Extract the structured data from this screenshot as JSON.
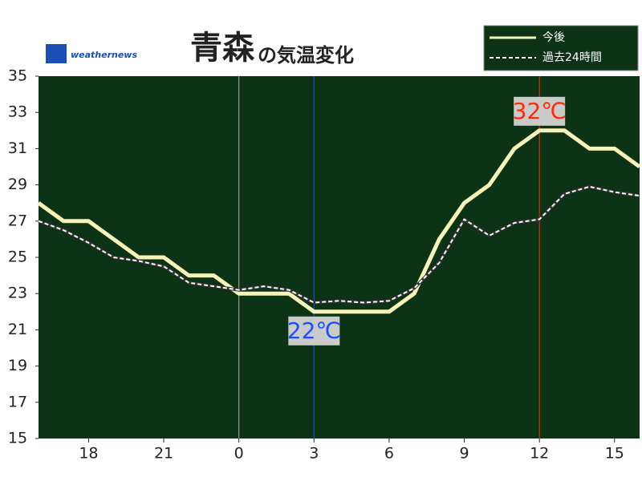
{
  "chart_data": {
    "type": "line",
    "title_place": "青森",
    "title_rest": "の気温変化",
    "logo": "weathernews",
    "x": [
      -8,
      -7,
      -6,
      -5,
      -4,
      -3,
      -2,
      -1,
      0,
      1,
      2,
      3,
      4,
      5,
      6,
      7,
      8,
      9,
      10,
      11,
      12,
      13,
      14,
      15,
      16
    ],
    "series": [
      {
        "name": "今後",
        "color": "#f7f3b8",
        "style": "solid",
        "values": [
          28,
          27,
          27,
          26,
          25,
          25,
          24,
          24,
          23,
          23,
          23,
          22,
          22,
          22,
          22,
          23,
          26,
          28,
          29,
          31,
          32,
          32,
          31,
          31,
          30
        ]
      },
      {
        "name": "過去24時間",
        "color": "#ffffff",
        "style": "dashed",
        "values": [
          27,
          26.5,
          25.8,
          25,
          24.8,
          24.5,
          23.6,
          23.4,
          23.2,
          23.4,
          23.2,
          22.5,
          22.6,
          22.5,
          22.6,
          23.3,
          24.7,
          27.1,
          26.2,
          26.9,
          27.1,
          28.5,
          28.9,
          28.6,
          28.4
        ]
      }
    ],
    "xlim": [
      -8,
      16
    ],
    "xticks": [
      {
        "value": -6,
        "label": "18"
      },
      {
        "value": -3,
        "label": "21"
      },
      0,
      3,
      6,
      9,
      12,
      15
    ],
    "ylim": [
      15,
      35
    ],
    "yticks": [
      15,
      17,
      19,
      21,
      23,
      25,
      27,
      29,
      31,
      33,
      35
    ],
    "day_line": 0,
    "annotations": [
      {
        "x": 3,
        "value": 22,
        "label": "22℃",
        "color": "#1a4fff"
      },
      {
        "x": 12,
        "value": 32,
        "label": "32℃",
        "color": "#ff2a0a"
      }
    ],
    "background": "#0d3316"
  }
}
